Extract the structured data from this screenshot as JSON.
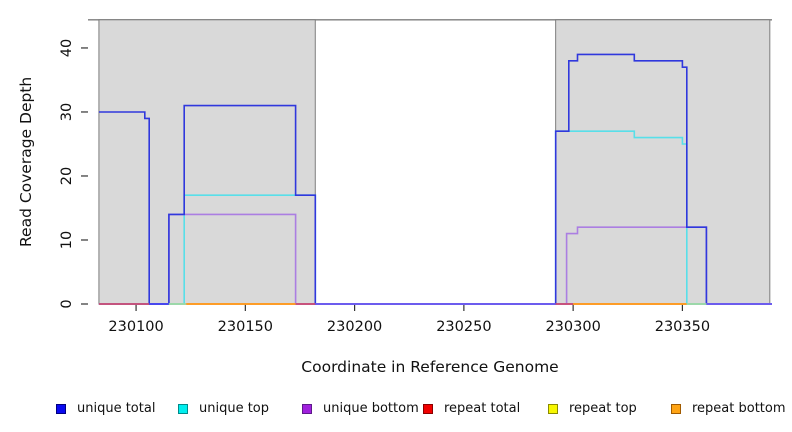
{
  "chart_data": {
    "type": "line",
    "title": "",
    "xlabel": "Coordinate in Reference Genome",
    "ylabel": "Read Coverage Depth",
    "xlim": [
      230078,
      230391
    ],
    "ylim": [
      0,
      44.4
    ],
    "x_ticks": [
      230100,
      230150,
      230200,
      230250,
      230300,
      230350
    ],
    "y_ticks": [
      0,
      10,
      20,
      30,
      40
    ],
    "grid": false,
    "legend_position": "bottom",
    "plot_background": "#ffffff",
    "shaded_region_color": "#d9d9d9",
    "shaded_region_border": "#7d7d7d",
    "shaded_regions": [
      {
        "x0": 230083,
        "x1": 230182
      },
      {
        "x0": 230292,
        "x1": 230390
      }
    ],
    "series": [
      {
        "name": "repeat total",
        "color": "#c84a72",
        "paths": [
          [
            [
              230083,
              0
            ],
            [
              230182,
              0
            ]
          ],
          [
            [
              230292,
              0
            ],
            [
              230361,
              0
            ]
          ]
        ]
      },
      {
        "name": "repeat top",
        "color": "#e8e84a",
        "paths": [
          [
            [
              230115,
              0
            ],
            [
              230123,
              0
            ]
          ],
          [
            [
              230352,
              0
            ],
            [
              230361,
              0
            ]
          ]
        ]
      },
      {
        "name": "repeat bottom",
        "color": "#ff9d1f",
        "paths": [
          [
            [
              230123,
              0
            ],
            [
              230173,
              0
            ]
          ],
          [
            [
              230300,
              0
            ],
            [
              230352,
              0
            ]
          ]
        ]
      },
      {
        "name": "unique top",
        "color": "#58dfe9",
        "paths": [
          [
            [
              230083,
              0
            ],
            [
              230122,
              0
            ],
            [
              230122,
              17
            ],
            [
              230182,
              17
            ],
            [
              230182,
              0
            ],
            [
              230292,
              0
            ],
            [
              230292,
              27
            ],
            [
              230328,
              27
            ],
            [
              230328,
              26
            ],
            [
              230350,
              26
            ],
            [
              230350,
              25
            ],
            [
              230352,
              25
            ],
            [
              230352,
              0
            ],
            [
              230391,
              0
            ]
          ]
        ]
      },
      {
        "name": "unique bottom",
        "color": "#ab7ee2",
        "paths": [
          [
            [
              230083,
              0
            ],
            [
              230115,
              0
            ],
            [
              230115,
              14
            ],
            [
              230173,
              14
            ],
            [
              230173,
              0
            ],
            [
              230297,
              0
            ],
            [
              230297,
              11
            ],
            [
              230302,
              11
            ],
            [
              230302,
              12
            ],
            [
              230361,
              12
            ],
            [
              230361,
              0
            ],
            [
              230391,
              0
            ]
          ]
        ]
      },
      {
        "name": "unique total",
        "color": "#3038dd",
        "paths": [
          [
            [
              230083,
              30
            ],
            [
              230104,
              30
            ],
            [
              230104,
              29
            ],
            [
              230106,
              29
            ],
            [
              230106,
              0
            ],
            [
              230115,
              0
            ],
            [
              230115,
              14
            ],
            [
              230122,
              14
            ],
            [
              230122,
              31
            ],
            [
              230173,
              31
            ],
            [
              230173,
              17
            ],
            [
              230182,
              17
            ],
            [
              230182,
              0
            ],
            [
              230292,
              0
            ],
            [
              230292,
              27
            ],
            [
              230298,
              27
            ],
            [
              230298,
              38
            ],
            [
              230302,
              38
            ],
            [
              230302,
              39
            ],
            [
              230328,
              39
            ],
            [
              230328,
              38
            ],
            [
              230350,
              38
            ],
            [
              230350,
              37
            ],
            [
              230352,
              37
            ],
            [
              230352,
              12
            ],
            [
              230361,
              12
            ],
            [
              230361,
              0
            ],
            [
              230391,
              0
            ]
          ]
        ]
      }
    ],
    "baseline_segments": [
      {
        "x0": 230083,
        "x1": 230106,
        "color": "#c84a72"
      },
      {
        "x0": 230106,
        "x1": 230115,
        "color": "#4343f0"
      },
      {
        "x0": 230115,
        "x1": 230123,
        "color": "#9bd9a8"
      },
      {
        "x0": 230123,
        "x1": 230173,
        "color": "#ff9d1f"
      },
      {
        "x0": 230173,
        "x1": 230182,
        "color": "#c84a72"
      },
      {
        "x0": 230182,
        "x1": 230292,
        "color": "#6d59ef"
      },
      {
        "x0": 230292,
        "x1": 230300,
        "color": "#c84a72"
      },
      {
        "x0": 230300,
        "x1": 230352,
        "color": "#ff9d1f"
      },
      {
        "x0": 230352,
        "x1": 230361,
        "color": "#9bd9a8"
      },
      {
        "x0": 230361,
        "x1": 230391,
        "color": "#6d59ef"
      }
    ],
    "legend": [
      {
        "label": "unique total",
        "fill": "#0a0af0",
        "border": "#000080"
      },
      {
        "label": "unique top",
        "fill": "#00eeee",
        "border": "#008b8b"
      },
      {
        "label": "unique bottom",
        "fill": "#a020dd",
        "border": "#5e1a8b"
      },
      {
        "label": "repeat total",
        "fill": "#f00000",
        "border": "#8b0000"
      },
      {
        "label": "repeat top",
        "fill": "#f7f700",
        "border": "#8b8b00"
      },
      {
        "label": "repeat bottom",
        "fill": "#ffa414",
        "border": "#a05a00"
      }
    ]
  }
}
